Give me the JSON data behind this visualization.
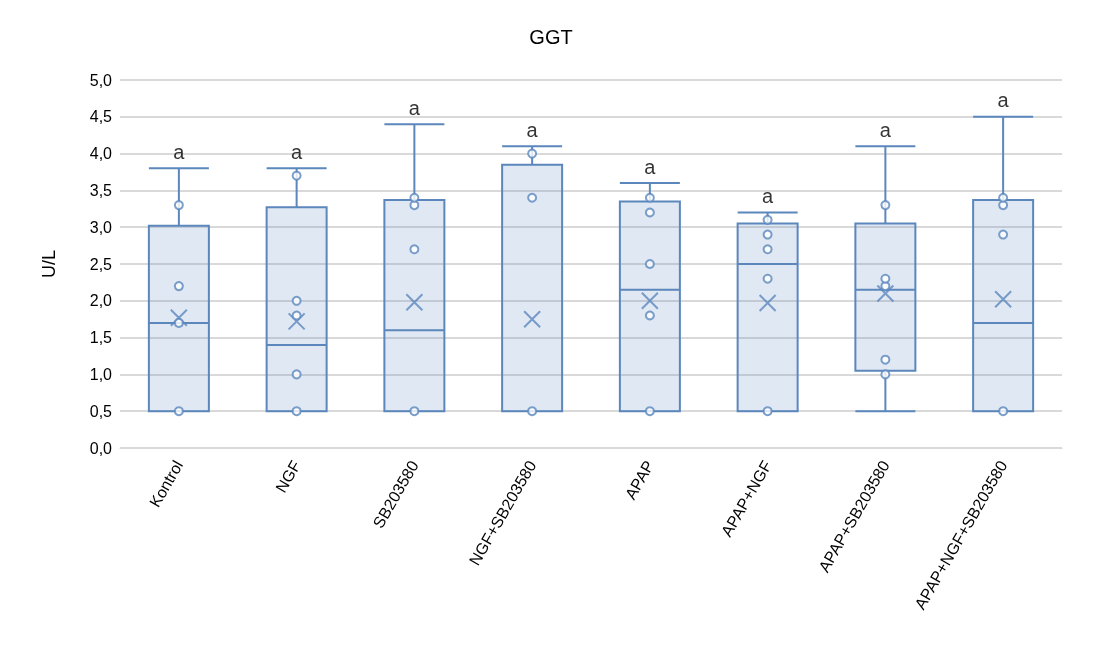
{
  "chart_data": {
    "type": "box",
    "title": "GGT",
    "ylabel": "U/L",
    "categories": [
      "Kontrol",
      "NGF",
      "SB203580",
      "NGF+SB203580",
      "APAP",
      "APAP+NGF",
      "APAP+SB203580",
      "APAP+NGF+SB203580"
    ],
    "ylim": [
      0,
      5
    ],
    "yticks": [
      {
        "value": 0,
        "label": "0,0"
      },
      {
        "value": 0.5,
        "label": "0,5"
      },
      {
        "value": 1,
        "label": "1,0"
      },
      {
        "value": 1.5,
        "label": "1,5"
      },
      {
        "value": 2,
        "label": "2,0"
      },
      {
        "value": 2.5,
        "label": "2,5"
      },
      {
        "value": 3,
        "label": "3,0"
      },
      {
        "value": 3.5,
        "label": "3,5"
      },
      {
        "value": 4,
        "label": "4,0"
      },
      {
        "value": 4.5,
        "label": "4,5"
      },
      {
        "value": 5,
        "label": "5,0"
      }
    ],
    "grid": "y",
    "series": [
      {
        "color": "#5b87bd",
        "boxes": [
          {
            "low": 0.5,
            "q1": 0.5,
            "median": 1.7,
            "q3": 3.02,
            "high": 3.8,
            "mean": 1.77
          },
          {
            "low": 0.5,
            "q1": 0.5,
            "median": 1.4,
            "q3": 3.27,
            "high": 3.8,
            "mean": 1.72
          },
          {
            "low": 0.5,
            "q1": 0.5,
            "median": 1.6,
            "q3": 3.37,
            "high": 4.4,
            "mean": 1.98
          },
          {
            "low": 0.5,
            "q1": 0.5,
            "median": 0.5,
            "q3": 3.85,
            "high": 4.1,
            "mean": 1.75
          },
          {
            "low": 0.5,
            "q1": 0.5,
            "median": 2.15,
            "q3": 3.35,
            "high": 3.6,
            "mean": 2.0
          },
          {
            "low": 0.5,
            "q1": 0.5,
            "median": 2.5,
            "q3": 3.05,
            "high": 3.2,
            "mean": 1.97
          },
          {
            "low": 0.5,
            "q1": 1.05,
            "median": 2.15,
            "q3": 3.05,
            "high": 4.1,
            "mean": 2.1
          },
          {
            "low": 0.5,
            "q1": 0.5,
            "median": 1.7,
            "q3": 3.37,
            "high": 4.5,
            "mean": 2.02
          }
        ]
      },
      {
        "type": "scatter",
        "color": "#5b87bd",
        "marker": "circle",
        "x": [
          "Kontrol",
          "Kontrol",
          "Kontrol",
          "Kontrol",
          "NGF",
          "NGF",
          "NGF",
          "NGF",
          "NGF",
          "SB203580",
          "SB203580",
          "SB203580",
          "SB203580",
          "NGF+SB203580",
          "NGF+SB203580",
          "NGF+SB203580",
          "APAP",
          "APAP",
          "APAP",
          "APAP",
          "APAP",
          "APAP+NGF",
          "APAP+NGF",
          "APAP+NGF",
          "APAP+NGF",
          "APAP+NGF",
          "APAP+SB203580",
          "APAP+SB203580",
          "APAP+SB203580",
          "APAP+SB203580",
          "APAP+SB203580",
          "APAP+NGF+SB203580",
          "APAP+NGF+SB203580",
          "APAP+NGF+SB203580",
          "APAP+NGF+SB203580"
        ],
        "values": [
          0.5,
          1.7,
          2.2,
          3.3,
          0.5,
          1.0,
          1.8,
          2.0,
          3.7,
          0.5,
          2.7,
          3.3,
          3.4,
          0.5,
          3.4,
          4.0,
          0.5,
          1.8,
          2.5,
          3.2,
          3.4,
          0.5,
          2.3,
          2.7,
          2.9,
          3.1,
          1.0,
          1.2,
          2.2,
          2.3,
          3.3,
          0.5,
          2.9,
          3.3,
          3.4
        ]
      }
    ],
    "annotations": [
      {
        "text": "a",
        "x": "Kontrol",
        "y": 3.8
      },
      {
        "text": "a",
        "x": "NGF",
        "y": 3.8
      },
      {
        "text": "a",
        "x": "SB203580",
        "y": 4.4
      },
      {
        "text": "a",
        "x": "NGF+SB203580",
        "y": 4.1
      },
      {
        "text": "a",
        "x": "APAP",
        "y": 3.6
      },
      {
        "text": "a",
        "x": "APAP+NGF",
        "y": 3.2
      },
      {
        "text": "a",
        "x": "APAP+SB203580",
        "y": 4.1
      },
      {
        "text": "a",
        "x": "APAP+NGF+SB203580",
        "y": 4.5
      }
    ]
  }
}
